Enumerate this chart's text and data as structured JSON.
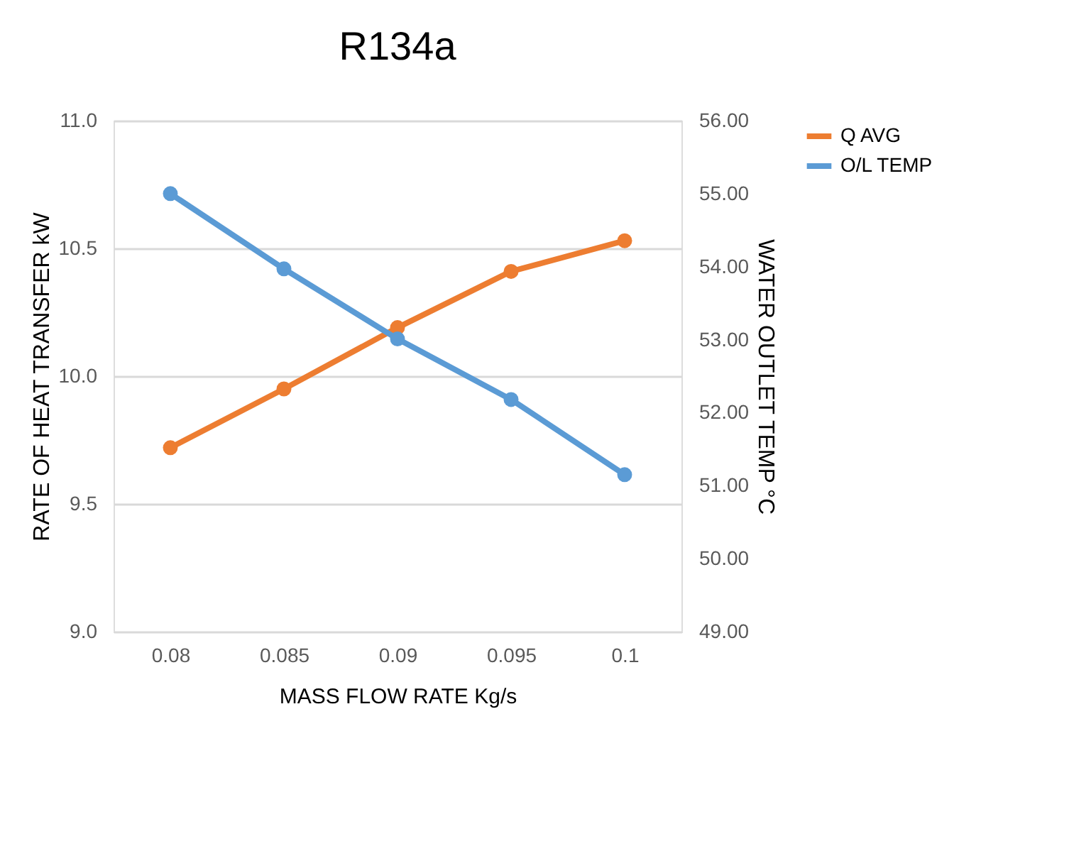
{
  "chart_data": {
    "type": "line",
    "title": "R134a",
    "xlabel": "MASS FLOW RATE Kg/s",
    "ylabel": "RATE OF HEAT TRANSFER kW",
    "y2label": "WATER OUTLET TEMP  °C",
    "categories": [
      "0.08",
      "0.085",
      "0.09",
      "0.095",
      "0.1"
    ],
    "series": [
      {
        "name": "Q AVG",
        "color": "#ed7d31",
        "values": [
          9.72,
          9.95,
          10.19,
          10.41,
          10.53
        ]
      },
      {
        "name": "O/L TEMP",
        "color": "#5b9bd5",
        "axis": "y2",
        "values": [
          55.0,
          53.97,
          53.01,
          52.18,
          51.15
        ]
      }
    ],
    "ylim": [
      9.0,
      11.0
    ],
    "yticks": [
      {
        "value": 9.0,
        "label": "9.0"
      },
      9.5,
      {
        "value": 10.0,
        "label": "10.0"
      },
      10.5,
      {
        "value": 11.0,
        "label": "11.0"
      }
    ],
    "y2lim": [
      49,
      56
    ],
    "y2ticks": [
      {
        "value": 49,
        "label": "49.00"
      },
      {
        "value": 50,
        "label": "50.00"
      },
      {
        "value": 51,
        "label": "51.00"
      },
      {
        "value": 52,
        "label": "52.00"
      },
      {
        "value": 53,
        "label": "53.00"
      },
      {
        "value": 54,
        "label": "54.00"
      },
      {
        "value": 55,
        "label": "55.00"
      },
      {
        "value": 56,
        "label": "56.00"
      }
    ],
    "grid": "y",
    "legend": "right",
    "marker": "circle",
    "line_style": "solid"
  }
}
